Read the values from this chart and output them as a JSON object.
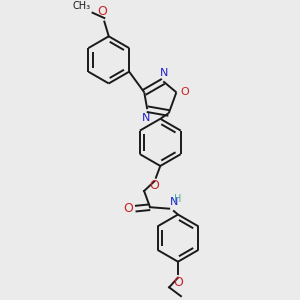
{
  "bg_color": "#ebebeb",
  "bond_color": "#1a1a1a",
  "nitrogen_color": "#2222cc",
  "oxygen_color": "#cc2222",
  "nh_color": "#44aaaa",
  "line_width": 1.4,
  "dbo": 0.008,
  "font_size": 8,
  "fig_size": [
    3.0,
    3.0
  ],
  "dpi": 100,
  "xlim": [
    0,
    1
  ],
  "ylim": [
    0,
    1
  ]
}
